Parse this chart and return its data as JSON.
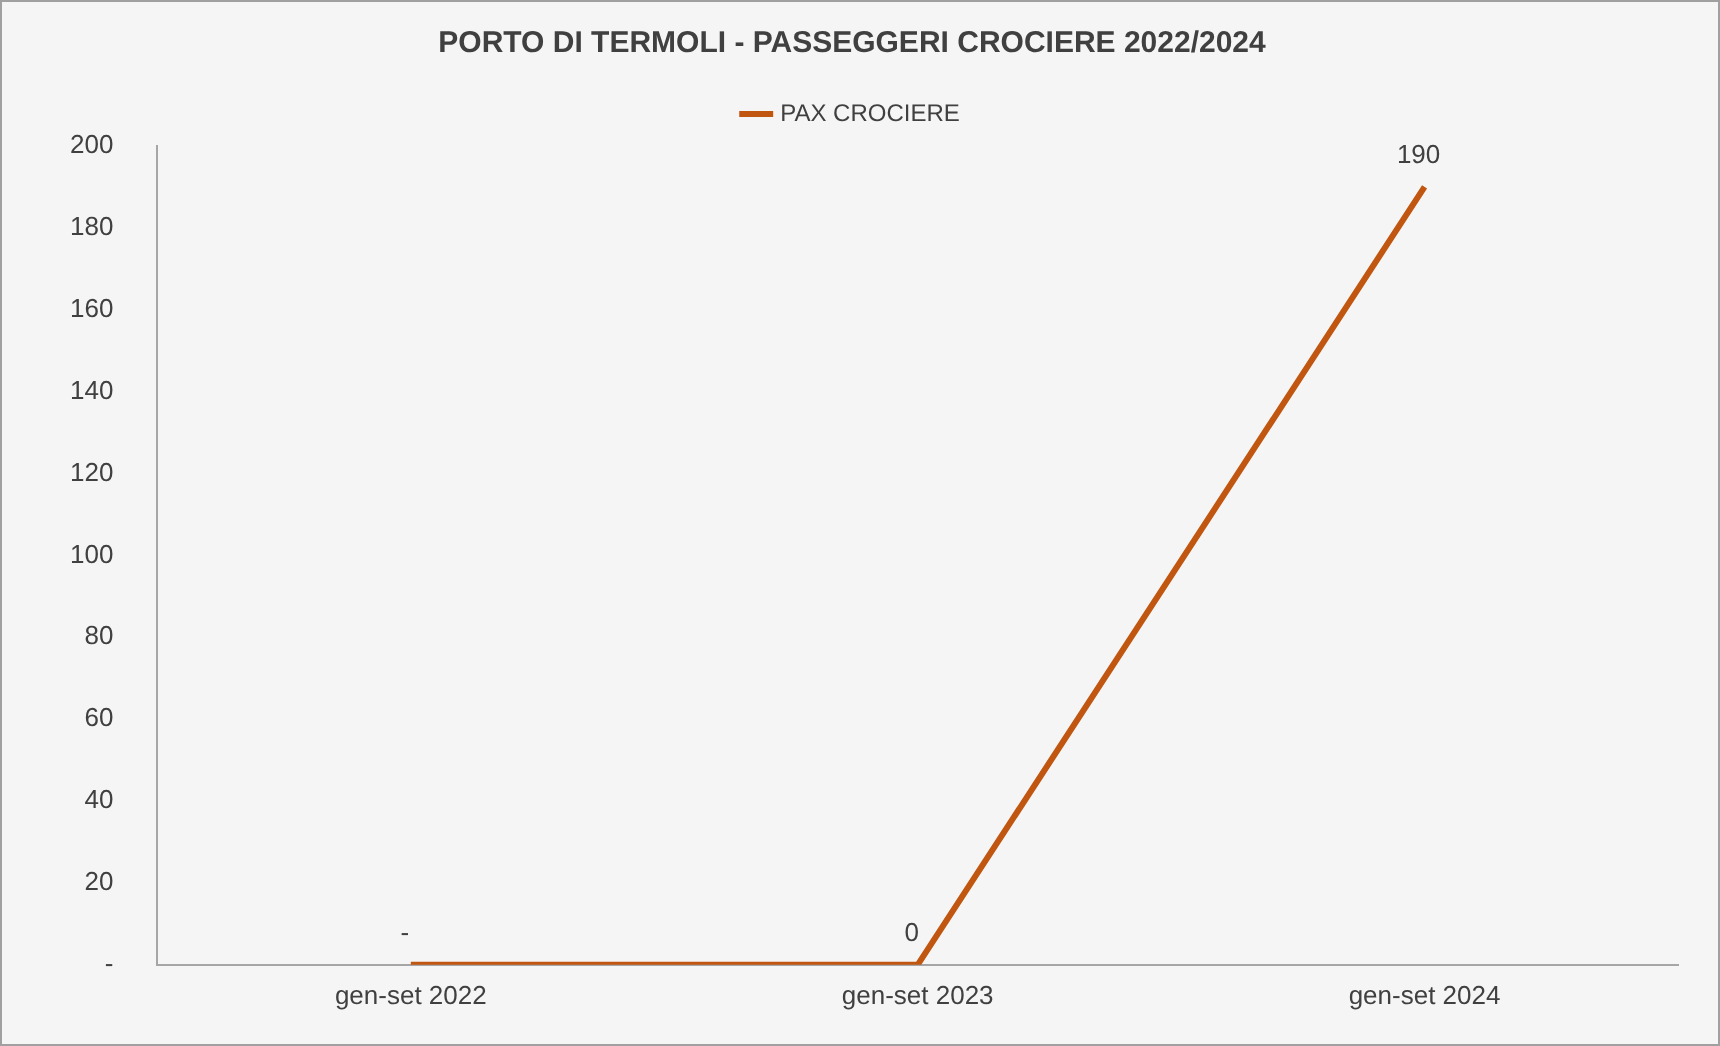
{
  "chart_data": {
    "type": "line",
    "title": "PORTO DI TERMOLI - PASSEGGERI CROCIERE 2022/2024",
    "categories": [
      "gen-set 2022",
      "gen-set 2023",
      "gen-set 2024"
    ],
    "series": [
      {
        "name": "PAX CROCIERE",
        "color": "#c0560f",
        "values": [
          0,
          0,
          190
        ],
        "value_labels": [
          "-",
          "0",
          "190"
        ]
      }
    ],
    "ylim": [
      0,
      200
    ],
    "yticks": [
      {
        "value": 0,
        "label": "-"
      },
      20,
      40,
      60,
      80,
      100,
      120,
      140,
      160,
      180,
      200
    ],
    "grid": false,
    "legend": "top",
    "marker": "none"
  }
}
